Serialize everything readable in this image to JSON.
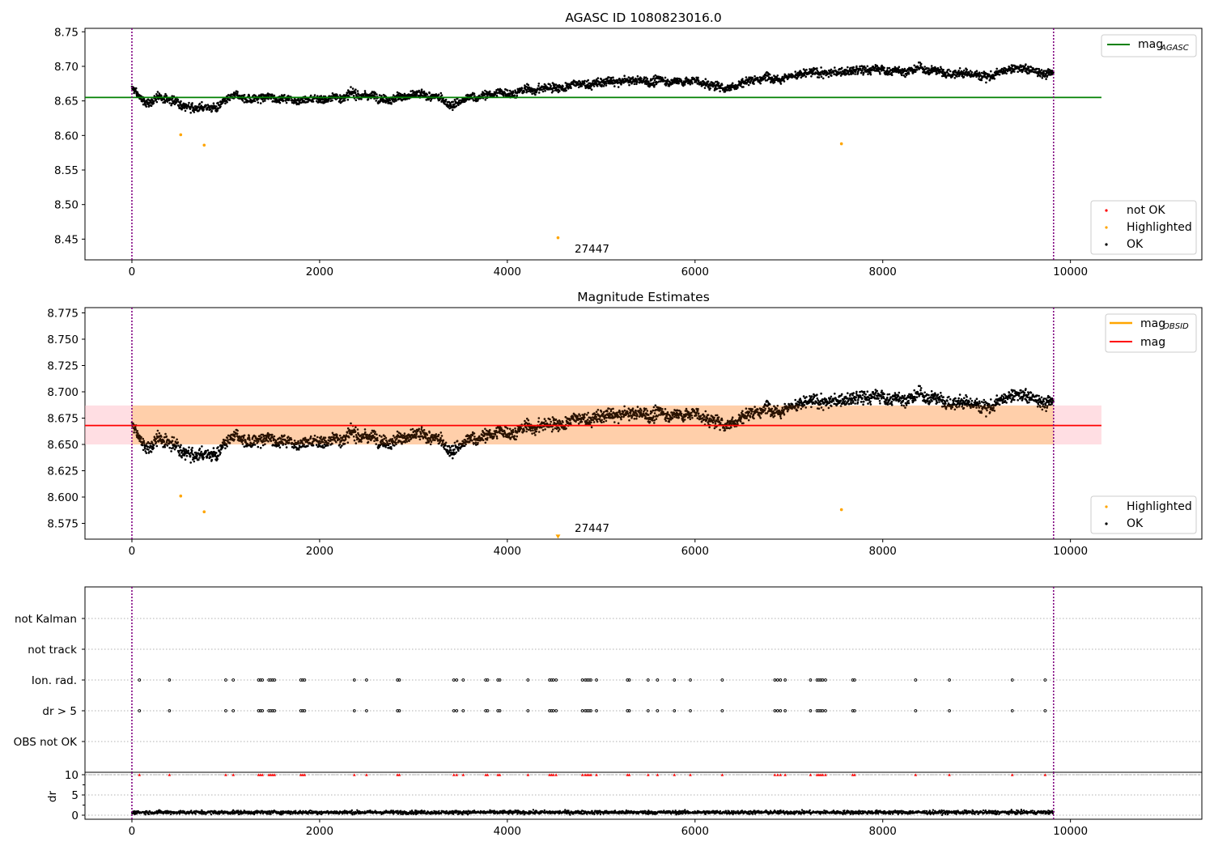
{
  "chart_data": [
    {
      "type": "scatter",
      "title": "AGASC ID 1080823016.0",
      "xlim": [
        -500,
        11400
      ],
      "ylim": [
        8.42,
        8.755
      ],
      "x_ticks": [
        "0",
        "2000",
        "4000",
        "6000",
        "8000",
        "10000"
      ],
      "y_ticks": [
        "8.45",
        "8.50",
        "8.55",
        "8.60",
        "8.65",
        "8.70",
        "8.75"
      ],
      "vlines": [
        0,
        9820
      ],
      "mag_agasc": 8.655,
      "hline_span": [
        -500,
        10330
      ],
      "ok_trend_knots": [
        [
          0,
          8.668
        ],
        [
          150,
          8.645
        ],
        [
          300,
          8.655
        ],
        [
          500,
          8.648
        ],
        [
          900,
          8.642
        ],
        [
          1100,
          8.652
        ],
        [
          2300,
          8.658
        ],
        [
          3000,
          8.66
        ],
        [
          3400,
          8.645
        ],
        [
          3700,
          8.655
        ],
        [
          4000,
          8.662
        ],
        [
          4500,
          8.67
        ],
        [
          5000,
          8.675
        ],
        [
          5500,
          8.678
        ],
        [
          6000,
          8.68
        ],
        [
          6300,
          8.668
        ],
        [
          6600,
          8.683
        ],
        [
          7000,
          8.692
        ],
        [
          7400,
          8.69
        ],
        [
          8000,
          8.694
        ],
        [
          8500,
          8.695
        ],
        [
          9000,
          8.688
        ],
        [
          9500,
          8.695
        ],
        [
          9820,
          8.69
        ]
      ],
      "highlighted_points": [
        [
          520,
          8.601
        ],
        [
          770,
          8.586
        ],
        [
          4540,
          8.452
        ],
        [
          7560,
          8.588
        ]
      ],
      "annotations": [
        {
          "text": "27447",
          "x": 4540,
          "y": 8.452
        }
      ],
      "legend_top": [
        {
          "label": "mag",
          "sub": "AGASC",
          "color": "#008000"
        }
      ],
      "legend_bottom": [
        {
          "label": "not OK",
          "color": "#ff0000"
        },
        {
          "label": "Highlighted",
          "color": "#ffa500"
        },
        {
          "label": "OK",
          "color": "#000000"
        }
      ]
    },
    {
      "type": "scatter",
      "title": "Magnitude Estimates",
      "xlim": [
        -500,
        11400
      ],
      "ylim": [
        8.56,
        8.78
      ],
      "x_ticks": [
        "0",
        "2000",
        "4000",
        "6000",
        "8000",
        "10000"
      ],
      "y_ticks": [
        "8.575",
        "8.600",
        "8.625",
        "8.650",
        "8.675",
        "8.700",
        "8.725",
        "8.750",
        "8.775"
      ],
      "vlines": [
        0,
        9820
      ],
      "mag": 8.668,
      "mag_obsid_band": [
        8.65,
        8.687
      ],
      "band_span": [
        -500,
        10330
      ],
      "highlighted_points": [
        [
          520,
          8.601
        ],
        [
          770,
          8.586
        ],
        [
          7560,
          8.588
        ]
      ],
      "offscale_marker": {
        "x": 4540,
        "y": 8.562
      },
      "annotations": [
        {
          "text": "27447",
          "x": 4540,
          "y": 8.562
        }
      ],
      "legend_top": [
        {
          "label": "mag",
          "sub": "OBSID",
          "color": "#ffa500"
        },
        {
          "label": "mag",
          "sub": "",
          "color": "#ff0000"
        }
      ],
      "legend_bottom": [
        {
          "label": "Highlighted",
          "color": "#ffa500"
        },
        {
          "label": "OK",
          "color": "#000000"
        }
      ]
    },
    {
      "type": "scatter",
      "title": "",
      "xlim": [
        -500,
        11400
      ],
      "categories": [
        "not Kalman",
        "not track",
        "Ion. rad.",
        "dr > 5",
        "OBS not OK"
      ],
      "vlines": [
        0,
        9820
      ],
      "flag_times": [
        80,
        400,
        1000,
        1080,
        1350,
        1370,
        1390,
        1460,
        1480,
        1500,
        1520,
        1800,
        1820,
        1840,
        2370,
        2500,
        2830,
        2850,
        3430,
        3460,
        3530,
        3770,
        3790,
        3900,
        3920,
        4220,
        4450,
        4470,
        4490,
        4520,
        4800,
        4830,
        4850,
        4870,
        4890,
        4950,
        5280,
        5300,
        5500,
        5600,
        5780,
        5950,
        6290,
        6850,
        6880,
        6910,
        6960,
        7230,
        7300,
        7320,
        7340,
        7360,
        7390,
        7680,
        7700,
        8350,
        8710,
        9380,
        9730
      ]
    },
    {
      "type": "scatter",
      "xlim": [
        -500,
        11400
      ],
      "ylim": [
        -1,
        10.6
      ],
      "ylabel": "dr",
      "x_ticks": [
        "0",
        "2000",
        "4000",
        "6000",
        "8000",
        "10000"
      ],
      "y_ticks": [
        "0",
        "5",
        "10"
      ],
      "vlines": [
        0,
        9820
      ],
      "dr_clip_value": 10,
      "dr_typical": 0.7
    }
  ]
}
